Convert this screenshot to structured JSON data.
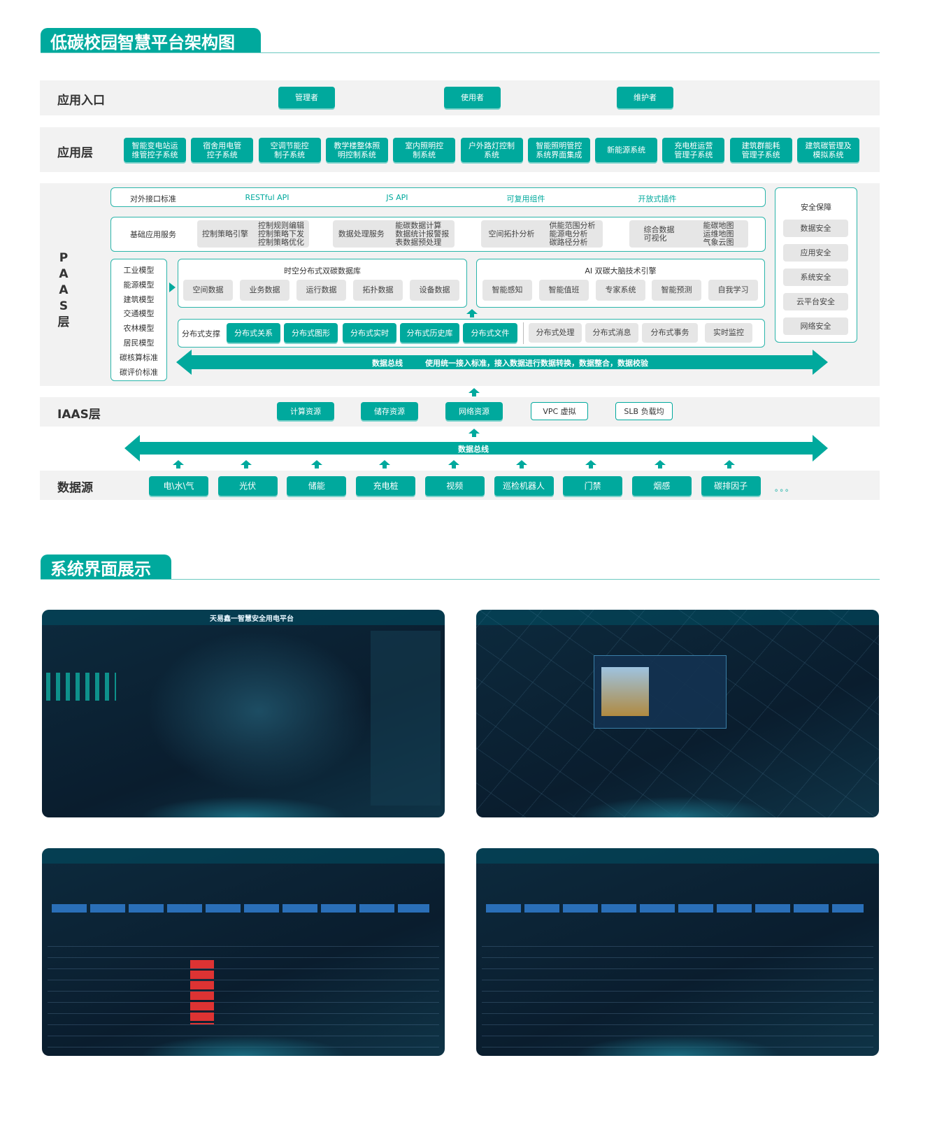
{
  "colors": {
    "accent": "#00a99d",
    "band": "#f2f2f2",
    "gray_box": "#e6e6e6"
  },
  "section1_title": "低碳校园智慧平台架构图",
  "section2_title": "系统界面展示",
  "entry": {
    "label": "应用入口",
    "items": [
      "管理者",
      "使用者",
      "维护者"
    ]
  },
  "app_layer": {
    "label": "应用层",
    "items": [
      "智能变电站运\n维管控子系统",
      "宿舍用电管\n控子系统",
      "空调节能控\n制子系统",
      "教学楼整体照\n明控制系统",
      "室内照明控\n制系统",
      "户外路灯控制\n系统",
      "智能照明管控\n系统界面集成",
      "新能源系统",
      "充电桩运营\n管理子系统",
      "建筑群能耗\n管理子系统",
      "建筑碳管理及\n模拟系统"
    ]
  },
  "paas": {
    "label": "PAAS层",
    "interface": {
      "label": "对外接口标准",
      "items": [
        "RESTful API",
        "JS API",
        "可复用组件",
        "开放式插件"
      ]
    },
    "basic": {
      "label": "基础应用服务",
      "groups": [
        {
          "name": "控制策略引擎",
          "items": "控制规则编辑\n控制策略下发\n控制策略优化"
        },
        {
          "name": "数据处理服务",
          "items": "能碳数据计算\n数据统计报警报\n表数据预处理"
        },
        {
          "name": "空间拓扑分析",
          "items": "供能范围分析\n能源电分析\n碳路径分析"
        },
        {
          "name": "综合数据\n可视化",
          "items": "能碳地图\n运维地图\n气象云图"
        }
      ]
    },
    "models": [
      "工业模型",
      "能源模型",
      "建筑模型",
      "交通模型",
      "农林模型",
      "居民模型",
      "碳核算标准",
      "碳评价标准"
    ],
    "database": {
      "title": "时空分布式双碳数据库",
      "items": [
        "空间数据",
        "业务数据",
        "运行数据",
        "拓扑数据",
        "设备数据"
      ]
    },
    "ai": {
      "title": "AI 双碳大脑技术引擎",
      "items": [
        "智能感知",
        "智能值班",
        "专家系统",
        "智能预测",
        "自我学习"
      ]
    },
    "distributed": {
      "label": "分布式支撑",
      "primary": [
        "分布式关系",
        "分布式图形",
        "分布式实时",
        "分布式历史库",
        "分布式文件"
      ],
      "secondary": [
        "分布式处理",
        "分布式消息",
        "分布式事务",
        "实时监控"
      ]
    },
    "bus": {
      "label": "数据总线",
      "desc": "使用统一接入标准，接入数据进行数据转换，数据整合，数据校验"
    },
    "security": {
      "title": "安全保障",
      "items": [
        "数据安全",
        "应用安全",
        "系统安全",
        "云平台安全",
        "网络安全"
      ]
    }
  },
  "iaas": {
    "label": "IAAS层",
    "primary": [
      "计算资源",
      "储存资源",
      "网络资源"
    ],
    "secondary": [
      "VPC 虚拟",
      "SLB 负载均"
    ]
  },
  "bus2": {
    "label": "数据总线"
  },
  "sources": {
    "label": "数据源",
    "items": [
      "电\\水\\气",
      "光伏",
      "储能",
      "充电桩",
      "视频",
      "巡检机器人",
      "门禁",
      "烟感",
      "碳排因子"
    ],
    "more": "。。。"
  },
  "screens": {
    "first_title": "天易鑫一智慧安全用电平台"
  }
}
